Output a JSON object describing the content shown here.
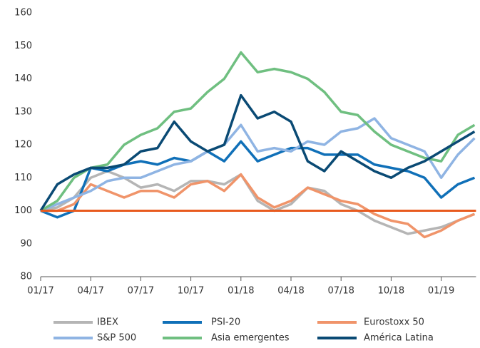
{
  "chart_data": {
    "type": "line",
    "categories": [
      "01/17",
      null,
      null,
      "04/17",
      null,
      null,
      "07/17",
      null,
      null,
      "10/17",
      null,
      null,
      "01/18",
      null,
      null,
      "04/18",
      null,
      null,
      "07/18",
      null,
      null,
      "10/18",
      null,
      null,
      "01/19",
      null,
      null
    ],
    "series": [
      {
        "name": "IBEX",
        "color": "#b5b5b5",
        "values": [
          100,
          101,
          104,
          110,
          112,
          110,
          107,
          108,
          106,
          109,
          109,
          108,
          111,
          103,
          100,
          102,
          107,
          106,
          102,
          100,
          97,
          95,
          93,
          94,
          95,
          97,
          99
        ]
      },
      {
        "name": "PSI-20",
        "color": "#1070b8",
        "values": [
          100,
          98,
          100,
          113,
          112,
          114,
          115,
          114,
          116,
          115,
          118,
          115,
          121,
          115,
          117,
          119,
          119,
          117,
          117,
          117,
          114,
          113,
          112,
          110,
          104,
          108,
          110
        ]
      },
      {
        "name": "Eurostoxx 50",
        "color": "#f0946a",
        "values": [
          100,
          100,
          102,
          108,
          106,
          104,
          106,
          106,
          104,
          108,
          109,
          106,
          111,
          104,
          101,
          103,
          107,
          105,
          103,
          102,
          99,
          97,
          96,
          92,
          94,
          97,
          99
        ]
      },
      {
        "name": "S&P 500",
        "color": "#8fb4e3",
        "values": [
          100,
          102,
          104,
          106,
          109,
          110,
          110,
          112,
          114,
          115,
          118,
          120,
          126,
          118,
          119,
          118,
          121,
          120,
          124,
          125,
          128,
          122,
          120,
          118,
          110,
          117,
          122
        ]
      },
      {
        "name": "Asia emergentes",
        "color": "#6fbf80",
        "values": [
          100,
          103,
          110,
          113,
          114,
          120,
          123,
          125,
          130,
          131,
          136,
          140,
          148,
          142,
          143,
          142,
          140,
          136,
          130,
          129,
          124,
          120,
          118,
          116,
          115,
          123,
          126
        ]
      },
      {
        "name": "América Latina",
        "color": "#0a4a74",
        "values": [
          100,
          108,
          111,
          113,
          113,
          114,
          118,
          119,
          127,
          121,
          118,
          120,
          135,
          128,
          130,
          127,
          115,
          112,
          118,
          115,
          112,
          110,
          113,
          115,
          118,
          121,
          124
        ]
      }
    ],
    "reference_line": {
      "value": 100,
      "color": "#e85a1e"
    },
    "ylim": [
      80,
      160
    ],
    "yticks": [
      80,
      90,
      100,
      110,
      120,
      130,
      140,
      150,
      160
    ]
  }
}
